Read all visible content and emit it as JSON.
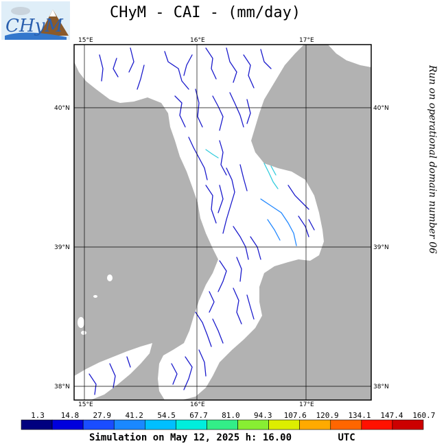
{
  "title": "CHyM - CAI - (mm/day)",
  "logo_text": "CHyM",
  "side_label": "Run on operational domain number 06",
  "footer": {
    "simulation": "Simulation on May 12, 2025 h: 16.00",
    "timezone": "UTC"
  },
  "map": {
    "lon_labels_top": [
      "15°E",
      "16°E",
      "17°E"
    ],
    "lon_labels_bottom": [
      "15°E",
      "16°E",
      "17°E"
    ],
    "lat_labels_left": [
      "40°N",
      "39°N",
      "38°N"
    ],
    "lat_labels_right": [
      "40°N",
      "39°N",
      "38°N"
    ],
    "colors": {
      "sea": "#b2b2b2",
      "land": "#ffffff",
      "river_main": "#1a1acc",
      "river_light": "#2288ff",
      "river_cyan": "#33ccdd"
    }
  },
  "colorbar": {
    "labels": [
      "1.3",
      "14.8",
      "27.9",
      "41.2",
      "54.5",
      "67.7",
      "81.0",
      "94.3",
      "107.6",
      "120.9",
      "134.1",
      "147.4",
      "160.7"
    ],
    "colors": [
      "#00007f",
      "#0000dd",
      "#1a4dff",
      "#1a88ff",
      "#00bfff",
      "#00eedd",
      "#33ee88",
      "#88ee33",
      "#ddee00",
      "#ffaa00",
      "#ff6600",
      "#ff1100",
      "#cc0000"
    ]
  }
}
